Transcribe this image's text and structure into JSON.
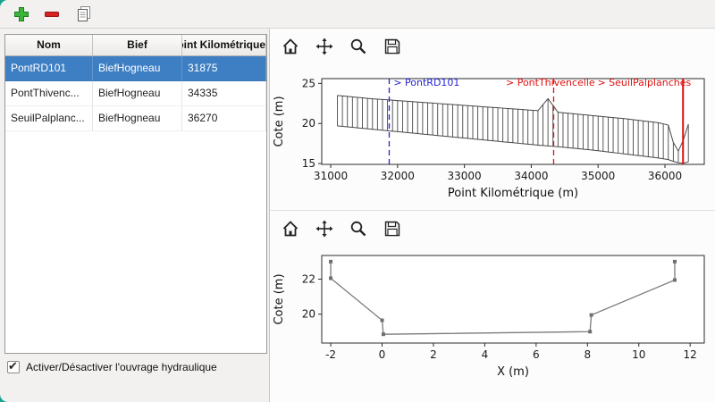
{
  "colors": {
    "desktop_background": "#17a28f",
    "selection": "#3e7fc4",
    "panel_background": "#f2f1f0"
  },
  "app_toolbar": {
    "buttons": [
      {
        "id": "add",
        "icon": "plus-icon"
      },
      {
        "id": "remove",
        "icon": "minus-icon"
      },
      {
        "id": "edit",
        "icon": "document-icon"
      }
    ]
  },
  "table": {
    "columns": [
      "Nom",
      "Bief",
      "Point Kilométrique"
    ],
    "rows": [
      {
        "nom": "PontRD101",
        "bief": "BiefHogneau",
        "pk": "31875",
        "selected": true
      },
      {
        "nom": "PontThivenc...",
        "bief": "BiefHogneau",
        "pk": "34335",
        "selected": false
      },
      {
        "nom": "SeuilPalplanc...",
        "bief": "BiefHogneau",
        "pk": "36270",
        "selected": false
      }
    ]
  },
  "checkbox": {
    "label": "Activer/Désactiver l'ouvrage hydraulique",
    "checked": true
  },
  "mpl_toolbar": {
    "icons": [
      "home-icon",
      "pan-icon",
      "zoom-icon",
      "save-icon"
    ]
  },
  "chart_data": [
    {
      "type": "line",
      "title": "",
      "xlabel": "Point Kilométrique (m)",
      "ylabel": "Cote (m)",
      "xlim": [
        30866,
        36588
      ],
      "ylim": [
        14.9,
        25.6
      ],
      "xticks": [
        31000,
        32000,
        33000,
        34000,
        35000,
        36000
      ],
      "yticks": [
        15,
        20,
        25
      ],
      "grid": false,
      "section_spacing": 75,
      "section_range": [
        31100,
        36350
      ],
      "envelope_top": [
        [
          31100,
          23.5
        ],
        [
          31600,
          23.1
        ],
        [
          32100,
          22.8
        ],
        [
          32600,
          22.5
        ],
        [
          33100,
          22.2
        ],
        [
          33600,
          21.9
        ],
        [
          34100,
          21.6
        ],
        [
          34250,
          23.1
        ],
        [
          34400,
          21.4
        ],
        [
          34900,
          21.0
        ],
        [
          35400,
          20.6
        ],
        [
          35900,
          20.1
        ],
        [
          36050,
          19.8
        ],
        [
          36150,
          16.9
        ],
        [
          36250,
          16.2
        ],
        [
          36300,
          19.7
        ],
        [
          36350,
          19.9
        ]
      ],
      "envelope_bottom": [
        [
          31100,
          19.7
        ],
        [
          31600,
          19.3
        ],
        [
          32100,
          18.9
        ],
        [
          32600,
          18.5
        ],
        [
          33100,
          18.1
        ],
        [
          33600,
          17.7
        ],
        [
          34100,
          17.3
        ],
        [
          34250,
          17.2
        ],
        [
          34400,
          17.1
        ],
        [
          34900,
          16.7
        ],
        [
          35400,
          16.2
        ],
        [
          35900,
          15.7
        ],
        [
          36050,
          15.5
        ],
        [
          36150,
          15.2
        ],
        [
          36250,
          15.0
        ],
        [
          36300,
          15.1
        ],
        [
          36350,
          15.2
        ]
      ],
      "markers": [
        {
          "x": 31875,
          "label": "> PontRD101",
          "color": "#2424d8",
          "dash": true,
          "width": 1.3,
          "label_x": 31940,
          "label_y": 24.7
        },
        {
          "x": 34335,
          "label": "> PontThivencelle",
          "color": "#e01010",
          "dash": true,
          "width": 1.3,
          "label_x": 33620,
          "label_y": 24.7
        },
        {
          "x": 36270,
          "label": "> SeuilPalplanches",
          "color": "#e01010",
          "dash": false,
          "width": 2,
          "label_x": 34990,
          "label_y": 24.7
        }
      ]
    },
    {
      "type": "line",
      "title": "",
      "xlabel": "X (m)",
      "ylabel": "Cote (m)",
      "xlim": [
        -2.35,
        12.55
      ],
      "ylim": [
        18.35,
        23.35
      ],
      "xticks": [
        -2,
        0,
        2,
        4,
        6,
        8,
        10,
        12
      ],
      "yticks": [
        20,
        22
      ],
      "grid": false,
      "points": [
        [
          -2,
          23.0
        ],
        [
          -2,
          22.05
        ],
        [
          0,
          19.65
        ],
        [
          0.05,
          18.85
        ],
        [
          8.1,
          19.0
        ],
        [
          8.15,
          19.95
        ],
        [
          11.4,
          21.95
        ],
        [
          11.4,
          23.0
        ]
      ],
      "line_color": "#7a7a7a",
      "marker_color": "#6e6e6e"
    }
  ]
}
